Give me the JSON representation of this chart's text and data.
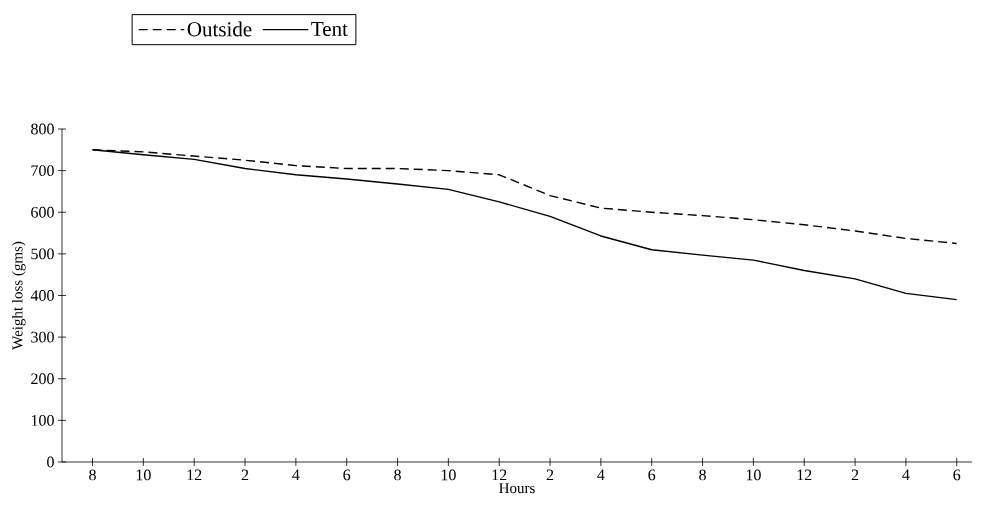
{
  "chart_data": {
    "type": "line",
    "xlabel": "Hours",
    "ylabel": "Weight loss (gms)",
    "categories": [
      "8",
      "10",
      "12",
      "2",
      "4",
      "6",
      "8",
      "10",
      "12",
      "2",
      "4",
      "6",
      "8",
      "10",
      "12",
      "2",
      "4",
      "6"
    ],
    "series": [
      {
        "name": "Outside",
        "color": "#000000",
        "line_style": "dashed",
        "values": [
          750,
          745,
          735,
          725,
          712,
          705,
          705,
          700,
          690,
          640,
          610,
          600,
          592,
          582,
          570,
          555,
          537,
          525
        ]
      },
      {
        "name": "Tent",
        "color": "#000000",
        "line_style": "solid",
        "values": [
          750,
          738,
          727,
          705,
          690,
          680,
          668,
          655,
          625,
          590,
          543,
          510,
          497,
          485,
          460,
          440,
          405,
          390
        ]
      }
    ],
    "ylim": [
      0,
      800
    ],
    "yticks": [
      0,
      100,
      200,
      300,
      400,
      500,
      600,
      700,
      800
    ],
    "grid": false,
    "legend": "top",
    "marker": "none"
  }
}
